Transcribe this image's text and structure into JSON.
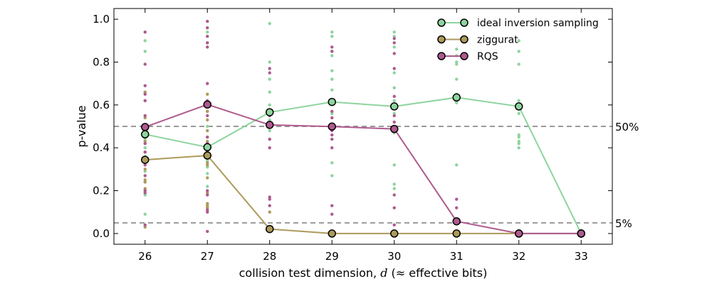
{
  "chart_data": {
    "type": "line",
    "title": "",
    "xlabel": "collision test dimension, d (≈ effective bits)",
    "xlabel_parts": {
      "before": "collision test dimension, ",
      "var": "d",
      "after": " (≈ effective bits)"
    },
    "ylabel": "p-value",
    "x": [
      26,
      27,
      28,
      29,
      30,
      31,
      32,
      33
    ],
    "xlim": [
      25.5,
      33.5
    ],
    "ylim": [
      -0.05,
      1.05
    ],
    "yticks": [
      0.0,
      0.2,
      0.4,
      0.6,
      0.8,
      1.0
    ],
    "ytick_labels": [
      "0.0",
      "0.2",
      "0.4",
      "0.6",
      "0.8",
      "1.0"
    ],
    "legend_position": "top-right",
    "reference_lines": [
      {
        "value": 0.5,
        "label": "50%",
        "color": "#999999"
      },
      {
        "value": 0.05,
        "label": "5%",
        "color": "#999999"
      }
    ],
    "series": [
      {
        "name": "ideal inversion sampling",
        "color": "#8ed49e",
        "values": [
          0.463,
          0.403,
          0.566,
          0.614,
          0.593,
          0.635,
          0.593,
          0.0
        ],
        "samples": [
          [
            0.9,
            0.85,
            0.66,
            0.62,
            0.55,
            0.48,
            0.44,
            0.4,
            0.36,
            0.29,
            0.24,
            0.18,
            0.09
          ],
          [
            0.94,
            0.89,
            0.62,
            0.57,
            0.5,
            0.45,
            0.4,
            0.34,
            0.31,
            0.28,
            0.22
          ],
          [
            0.98,
            0.8,
            0.72,
            0.66,
            0.6,
            0.53,
            0.48,
            0.44
          ],
          [
            0.94,
            0.92,
            0.85,
            0.83,
            0.76,
            0.72,
            0.67,
            0.61,
            0.56,
            0.49,
            0.33,
            0.27
          ],
          [
            0.94,
            0.92,
            0.87,
            0.75,
            0.68,
            0.62,
            0.56,
            0.52,
            0.47,
            0.32,
            0.23,
            0.21
          ],
          [
            0.86,
            0.83,
            0.8,
            0.79,
            0.72,
            0.65,
            0.61,
            0.32
          ],
          [
            0.9,
            0.85,
            0.79,
            0.62,
            0.56,
            0.46,
            0.45,
            0.43,
            0.42,
            0.4
          ],
          []
        ]
      },
      {
        "name": "ziggurat",
        "color": "#ad9a5b",
        "values": [
          0.344,
          0.364,
          0.021,
          0.0,
          0.0,
          0.0,
          0.0,
          0.0
        ],
        "samples": [
          [
            0.66,
            0.54,
            0.43,
            0.38,
            0.3,
            0.25,
            0.24,
            0.21,
            0.2,
            0.03
          ],
          [
            0.65,
            0.61,
            0.57,
            0.53,
            0.48,
            0.43,
            0.38,
            0.33,
            0.32,
            0.26,
            0.19,
            0.14,
            0.13,
            0.12
          ],
          [
            0.1,
            0.03
          ],
          [],
          [],
          [],
          [],
          []
        ]
      },
      {
        "name": "RQS",
        "color": "#ae5a8e",
        "values": [
          0.497,
          0.602,
          0.507,
          0.499,
          0.488,
          0.057,
          0.0,
          0.0
        ],
        "samples": [
          [
            0.94,
            0.79,
            0.69,
            0.65,
            0.62,
            0.55,
            0.5,
            0.46,
            0.42,
            0.38,
            0.32,
            0.27,
            0.2,
            0.19,
            0.04
          ],
          [
            0.99,
            0.96,
            0.92,
            0.89,
            0.87,
            0.7,
            0.62,
            0.55,
            0.45,
            0.42,
            0.38,
            0.2,
            0.18,
            0.11,
            0.1,
            0.01
          ],
          [
            0.77,
            0.75,
            0.55,
            0.5,
            0.44,
            0.4,
            0.17,
            0.16,
            0.13
          ],
          [
            0.87,
            0.85,
            0.57,
            0.54,
            0.51,
            0.48,
            0.46,
            0.44,
            0.4,
            0.13,
            0.09
          ],
          [
            0.91,
            0.89,
            0.84,
            0.77,
            0.64,
            0.6,
            0.55,
            0.52,
            0.49,
            0.18,
            0.12,
            0.04
          ],
          [
            0.16,
            0.12,
            0.05
          ],
          [],
          []
        ]
      }
    ]
  }
}
